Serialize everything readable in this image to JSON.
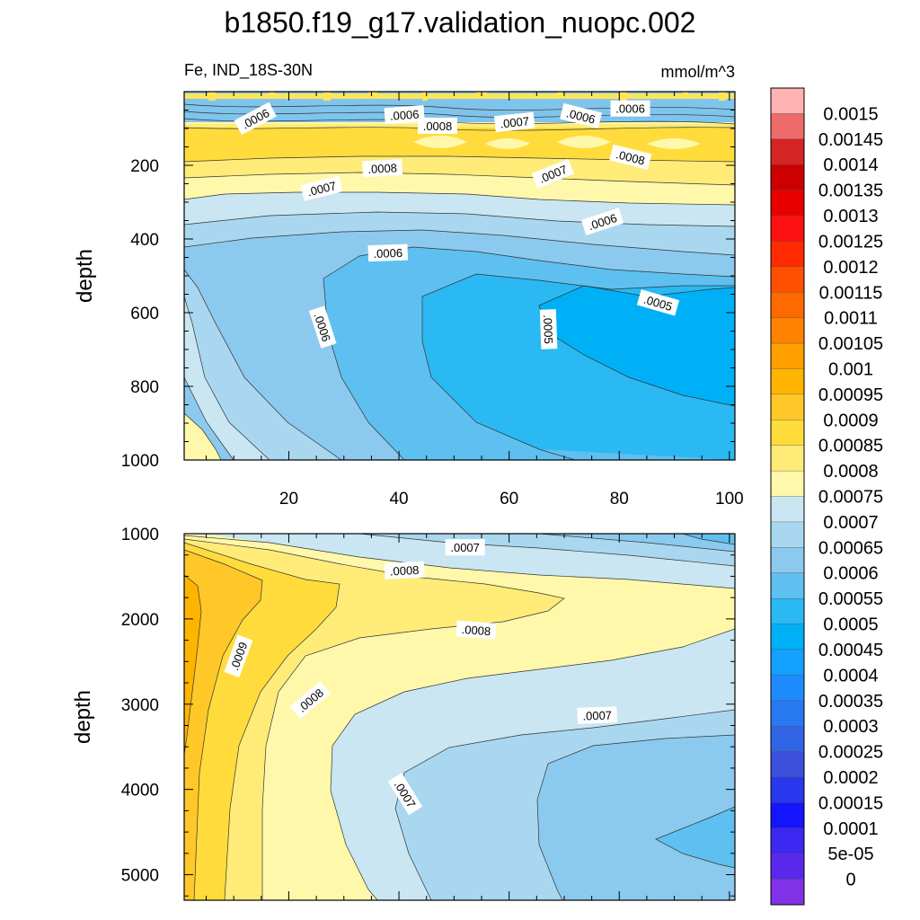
{
  "title": "b1850.f19_g17.validation_nuopc.002",
  "chart_data": [
    {
      "type": "contour",
      "panel": "upper",
      "subtitle_left": "Fe, IND_18S-30N",
      "subtitle_right": "mmol/m^3",
      "ylabel": "depth",
      "xlim": [
        1,
        101
      ],
      "ylim": [
        0,
        1000
      ],
      "xticks": [
        20,
        40,
        60,
        80,
        100
      ],
      "yticks": [
        200,
        400,
        600,
        800,
        1000
      ],
      "contour_labels": [
        {
          "text": ".0006",
          "x": 14,
          "y": 75,
          "angle": -28
        },
        {
          "text": ".0006",
          "x": 41,
          "y": 65,
          "angle": -4
        },
        {
          "text": ".0008",
          "x": 47,
          "y": 95,
          "angle": 0
        },
        {
          "text": ".0007",
          "x": 61,
          "y": 85,
          "angle": -6
        },
        {
          "text": ".0006",
          "x": 73,
          "y": 68,
          "angle": 14
        },
        {
          "text": ".0006",
          "x": 82,
          "y": 48,
          "angle": 0
        },
        {
          "text": ".0008",
          "x": 37,
          "y": 210,
          "angle": -3
        },
        {
          "text": ".0008",
          "x": 82,
          "y": 180,
          "angle": 14
        },
        {
          "text": ".0007",
          "x": 26,
          "y": 265,
          "angle": -14
        },
        {
          "text": ".0007",
          "x": 68,
          "y": 225,
          "angle": -22
        },
        {
          "text": ".0006",
          "x": 77,
          "y": 355,
          "angle": -18
        },
        {
          "text": ".0006",
          "x": 38,
          "y": 440,
          "angle": -2
        },
        {
          "text": ".0006",
          "x": 26,
          "y": 640,
          "angle": 72
        },
        {
          "text": ".0005",
          "x": 67,
          "y": 645,
          "angle": 88
        },
        {
          "text": ".0005",
          "x": 87,
          "y": 575,
          "angle": 16
        }
      ]
    },
    {
      "type": "contour",
      "panel": "lower",
      "ylabel": "depth",
      "xlim": [
        1,
        101
      ],
      "ylim": [
        1000,
        5300
      ],
      "yticks": [
        1000,
        2000,
        3000,
        4000,
        5000
      ],
      "contour_labels": [
        {
          "text": ".0007",
          "x": 52,
          "y": 1170,
          "angle": 0
        },
        {
          "text": ".0008",
          "x": 41,
          "y": 1440,
          "angle": -3
        },
        {
          "text": ".0008",
          "x": 54,
          "y": 2140,
          "angle": 4
        },
        {
          "text": ".0009",
          "x": 11,
          "y": 2440,
          "angle": -70
        },
        {
          "text": ".0008",
          "x": 24,
          "y": 2960,
          "angle": -40
        },
        {
          "text": ".0007",
          "x": 76,
          "y": 3140,
          "angle": -2
        },
        {
          "text": ".0007",
          "x": 41,
          "y": 4060,
          "angle": 58
        }
      ]
    }
  ],
  "colorbar": {
    "levels": [
      "0.0015",
      "0.00145",
      "0.0014",
      "0.00135",
      "0.0013",
      "0.00125",
      "0.0012",
      "0.00115",
      "0.0011",
      "0.00105",
      "0.001",
      "0.00095",
      "0.0009",
      "0.00085",
      "0.0008",
      "0.00075",
      "0.0007",
      "0.00065",
      "0.0006",
      "0.00055",
      "0.0005",
      "0.00045",
      "0.0004",
      "0.00035",
      "0.0003",
      "0.00025",
      "0.0002",
      "0.00015",
      "0.0001",
      "5e-05",
      "0"
    ],
    "colors": [
      "#FFB3B3",
      "#EE6B6B",
      "#D42424",
      "#CC0000",
      "#E80000",
      "#FF1010",
      "#FF2A00",
      "#FF5000",
      "#FF6A00",
      "#FF8200",
      "#FFA000",
      "#FFB400",
      "#FFC828",
      "#FFDC3C",
      "#FFEC78",
      "#FFF8AA",
      "#C9E6F2",
      "#A9D7F0",
      "#8CC9EE",
      "#5EC0F0",
      "#2AB9F2",
      "#00B0F6",
      "#14A0FF",
      "#1E8CFF",
      "#2878F0",
      "#3264E6",
      "#3C50DC",
      "#2838EC",
      "#1414FF",
      "#3C28F0",
      "#5A28EC",
      "#8232E6"
    ]
  }
}
